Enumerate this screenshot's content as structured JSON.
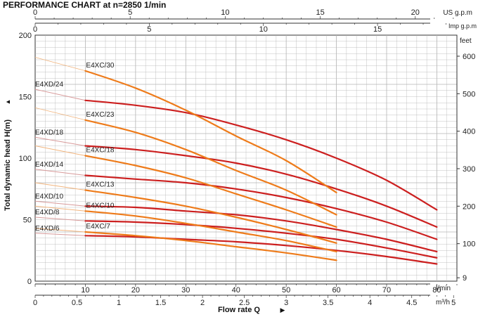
{
  "title": "PERFORMANCE CHART at n=2850 1/min",
  "left_axis": {
    "label": "Total dynamic head H(m)",
    "arrow": "▲",
    "range": [
      0,
      200
    ],
    "ticks": [
      "0",
      "50",
      "100",
      "150",
      "200"
    ]
  },
  "right_axis": {
    "unit": "feet",
    "ticks": [
      "9",
      "100",
      "200",
      "300",
      "400",
      "500",
      "600"
    ]
  },
  "bottom_axes": {
    "lmin": {
      "unit": "l/min",
      "ticks": [
        "10",
        "20",
        "30",
        "40",
        "50",
        "60",
        "70",
        "80"
      ]
    },
    "m3h": {
      "unit": "m³/h",
      "ticks": [
        "0",
        "0.5",
        "1",
        "1.5",
        "2",
        "2.5",
        "3",
        "3.5",
        "4",
        "4.5",
        "5"
      ]
    },
    "xlabel": "Flow rate Q",
    "arrow": "▶"
  },
  "top_axes": {
    "us": {
      "unit": "US g.p.m",
      "ticks": [
        "0",
        "5",
        "10",
        "15",
        "20"
      ]
    },
    "imp": {
      "unit": "Imp g.p.m",
      "ticks": [
        "0",
        "5",
        "10",
        "15"
      ]
    }
  },
  "colors": {
    "E4XD": "#cc1f1f",
    "E4XC": "#ee7b1a",
    "E4XD_ext": "#d89a9a",
    "E4XC_ext": "#f2b57e",
    "grid": "#b4b4b4",
    "axis": "#333333"
  },
  "chart_data": {
    "type": "line",
    "title": "PERFORMANCE CHART at n=2850 1/min",
    "xlabel": "Flow rate Q",
    "x_unit": "l/min",
    "ylabel": "Total dynamic head H(m)",
    "xlim": [
      0,
      84
    ],
    "ylim": [
      0,
      200
    ],
    "grid": true,
    "series": [
      {
        "name": "E4XD/24",
        "family": "E4XD",
        "x": [
          0,
          10,
          20,
          30,
          40,
          50,
          60,
          70,
          80
        ],
        "y": [
          156,
          147,
          143,
          137,
          127,
          115,
          100,
          82,
          58
        ]
      },
      {
        "name": "E4XD/18",
        "family": "E4XD",
        "x": [
          0,
          10,
          20,
          30,
          40,
          50,
          60,
          70,
          80
        ],
        "y": [
          117,
          110,
          107,
          102,
          96,
          87,
          75,
          61,
          44
        ]
      },
      {
        "name": "E4XD/14",
        "family": "E4XD",
        "x": [
          0,
          10,
          20,
          30,
          40,
          50,
          60,
          70,
          80
        ],
        "y": [
          91,
          86,
          83,
          80,
          75,
          68,
          59,
          48,
          34
        ]
      },
      {
        "name": "E4XD/10",
        "family": "E4XD",
        "x": [
          0,
          10,
          20,
          30,
          40,
          50,
          60,
          70,
          80
        ],
        "y": [
          65,
          61,
          60,
          57,
          54,
          49,
          42,
          34,
          24
        ]
      },
      {
        "name": "E4XD/8",
        "family": "E4XD",
        "x": [
          0,
          10,
          20,
          30,
          40,
          50,
          60,
          70,
          80
        ],
        "y": [
          52,
          49,
          48,
          46,
          43,
          39,
          34,
          27,
          19
        ]
      },
      {
        "name": "E4XD/6",
        "family": "E4XD",
        "x": [
          0,
          10,
          20,
          30,
          40,
          50,
          60,
          70,
          80
        ],
        "y": [
          39,
          37,
          36,
          34,
          32,
          29,
          25,
          20,
          14
        ]
      },
      {
        "name": "E4XC/30",
        "family": "E4XC",
        "x": [
          0,
          10,
          20,
          30,
          40,
          50,
          60
        ],
        "y": [
          182,
          171,
          157,
          139,
          118,
          98,
          72
        ]
      },
      {
        "name": "E4XC/23",
        "family": "E4XC",
        "x": [
          0,
          10,
          20,
          30,
          40,
          50,
          60
        ],
        "y": [
          141,
          131,
          121,
          107,
          90,
          74,
          54
        ]
      },
      {
        "name": "E4XC/18",
        "family": "E4XC",
        "x": [
          0,
          10,
          20,
          30,
          40,
          50,
          60
        ],
        "y": [
          110,
          102,
          94,
          84,
          71,
          58,
          44
        ]
      },
      {
        "name": "E4XC/13",
        "family": "E4XC",
        "x": [
          0,
          10,
          20,
          30,
          40,
          50,
          60
        ],
        "y": [
          80,
          74,
          68,
          61,
          52,
          42,
          31
        ]
      },
      {
        "name": "E4XC/10",
        "family": "E4XC",
        "x": [
          0,
          10,
          20,
          30,
          40,
          50,
          60
        ],
        "y": [
          61,
          57,
          53,
          47,
          40,
          33,
          24
        ]
      },
      {
        "name": "E4XC/7",
        "family": "E4XC",
        "x": [
          0,
          10,
          20,
          30,
          40,
          50,
          60
        ],
        "y": [
          43,
          40,
          37,
          33,
          28,
          23,
          17
        ]
      }
    ]
  }
}
